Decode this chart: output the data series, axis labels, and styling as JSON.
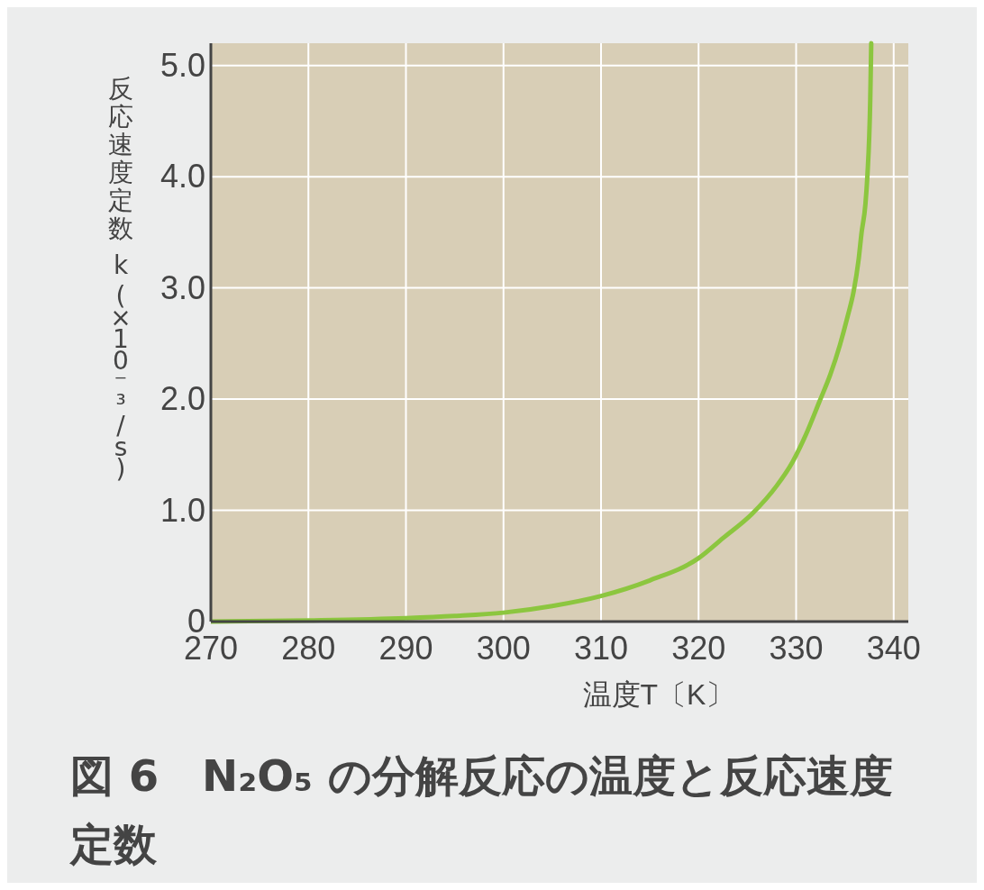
{
  "chart_data": {
    "type": "line",
    "title": "図 6　N₂O₅ の分解反応の温度と反応速度定数",
    "xlabel": "温度T〔K〕",
    "ylabel": "反応速度定数 k (×10⁻³/s)",
    "x": [
      270,
      280,
      290,
      295,
      300,
      305,
      310,
      315,
      320,
      322.5,
      325.5,
      328,
      329.6,
      331,
      332.4,
      333.5,
      334.5,
      335.3,
      335.9,
      336.4,
      336.7,
      337.1,
      337.3,
      337.6,
      337.7
    ],
    "series": [
      {
        "color": "#8cc63f",
        "values": [
          0.0,
          0.01,
          0.03,
          0.05,
          0.08,
          0.14,
          0.23,
          0.37,
          0.57,
          0.75,
          0.97,
          1.22,
          1.43,
          1.68,
          1.98,
          2.22,
          2.49,
          2.75,
          2.97,
          3.25,
          3.49,
          3.75,
          4.0,
          4.7,
          5.2
        ]
      }
    ],
    "xlim": [
      270,
      341.5
    ],
    "ylim": [
      0,
      5.2
    ],
    "xticks": [
      270,
      280,
      290,
      300,
      310,
      320,
      330,
      340
    ],
    "yticks": [
      {
        "value": 0,
        "label": "0"
      },
      {
        "value": 1,
        "label": "1.0"
      },
      {
        "value": 2,
        "label": "2.0"
      },
      {
        "value": 3,
        "label": "3.0"
      },
      {
        "value": 4,
        "label": "4.0"
      },
      {
        "value": 5,
        "label": "5.0"
      }
    ],
    "grid": true,
    "marker": "none",
    "line_style": "solid"
  }
}
